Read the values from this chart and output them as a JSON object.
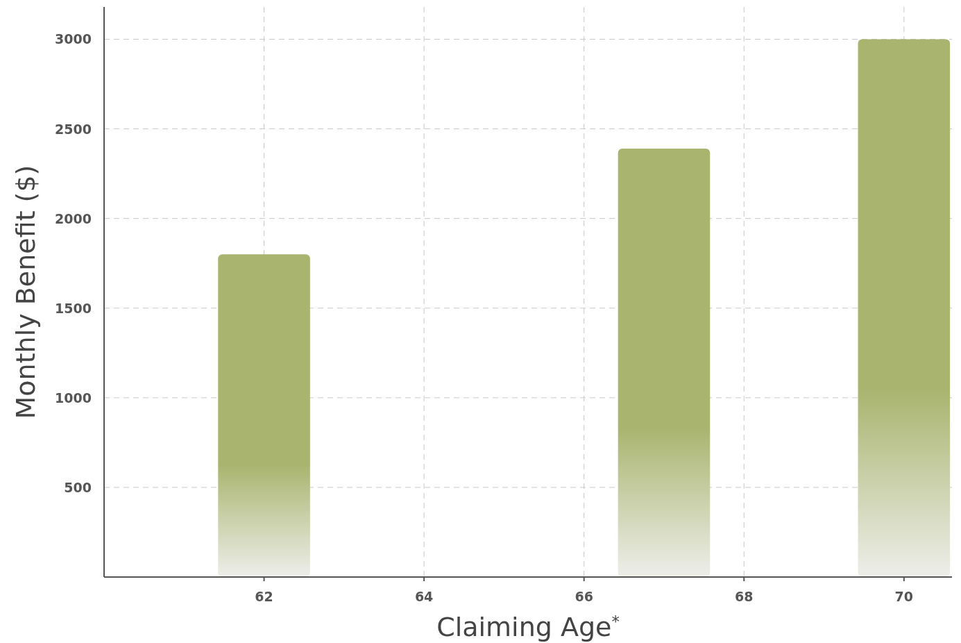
{
  "chart_data": {
    "type": "bar",
    "xlabel": "Claiming Age$^{*}$",
    "ylabel": "Monthly Benefit ($)",
    "x": [
      62,
      67,
      70
    ],
    "values": [
      1800,
      2390,
      3000
    ],
    "color": "#a9b46e",
    "xlim": [
      60,
      70.6
    ],
    "xticks": [
      62,
      64,
      66,
      68,
      70
    ],
    "ylim": [
      0,
      3180
    ],
    "yticks": [
      500,
      1000,
      1500,
      2000,
      2500,
      3000
    ],
    "grid": true,
    "line_style": "dashed"
  }
}
